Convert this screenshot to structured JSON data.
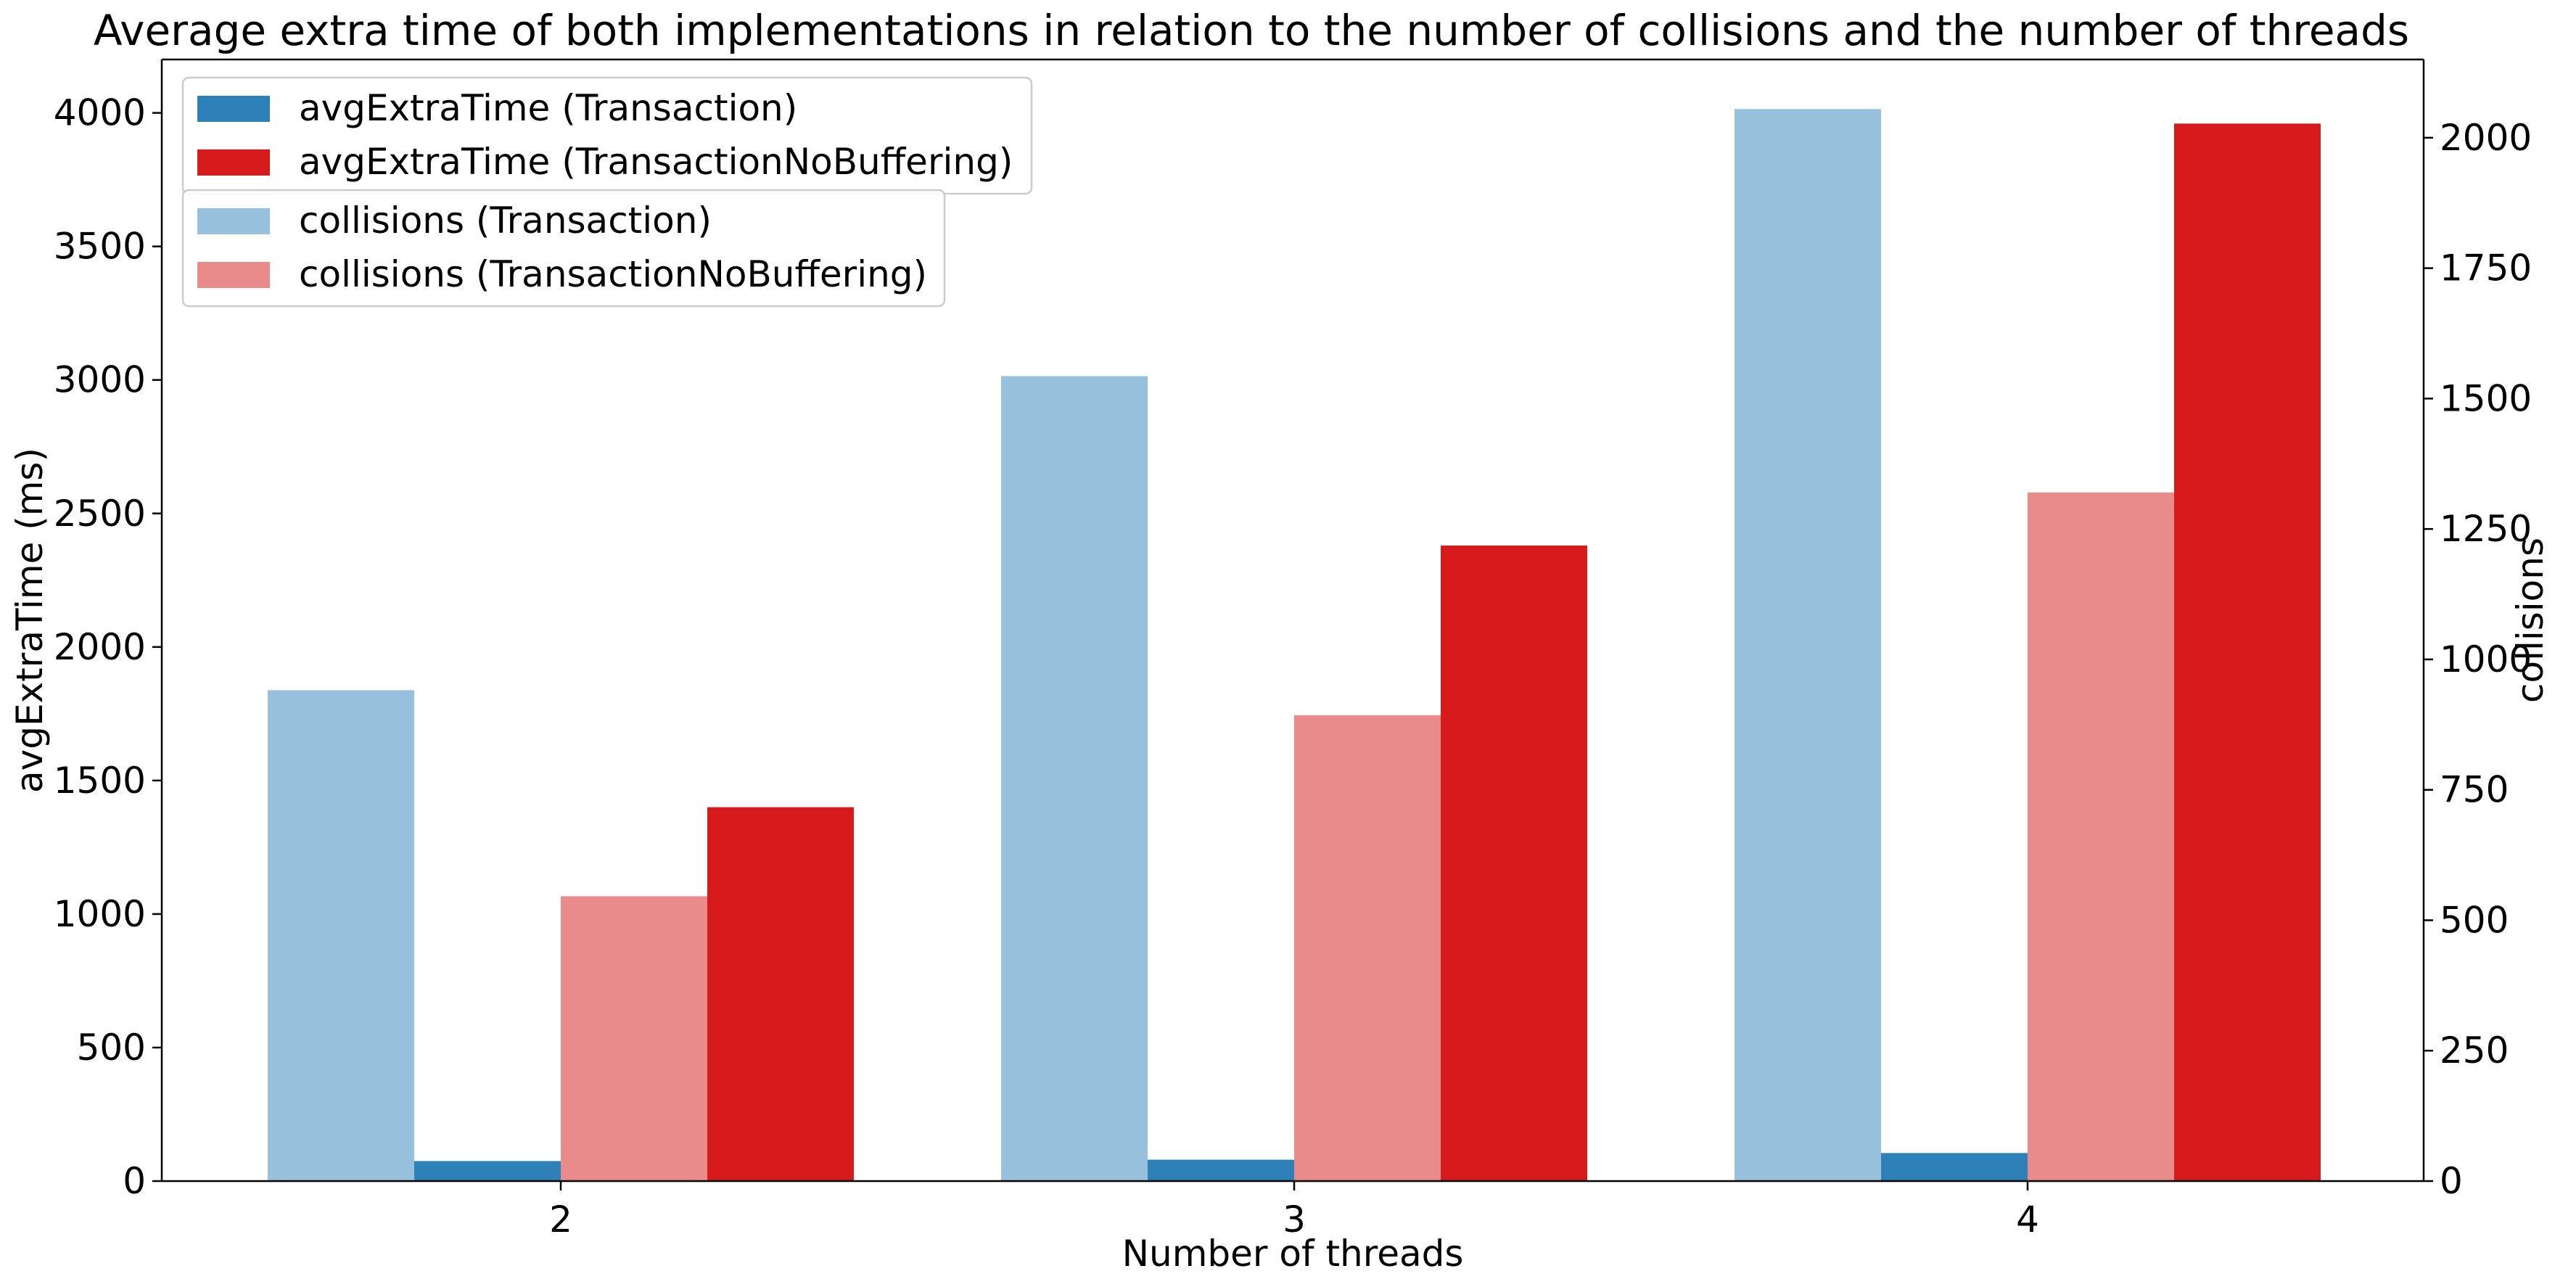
{
  "chart_data": {
    "type": "bar",
    "title": "Average extra time of both implementations in relation to the number of collisions and the number of threads",
    "xlabel": "Number of threads",
    "ylabel_left": "avgExtraTime (ms)",
    "ylabel_right": "collisions",
    "categories": [
      "2",
      "3",
      "4"
    ],
    "ylim_left": [
      0,
      4200
    ],
    "ylim_right": [
      0,
      2150
    ],
    "yticks_left": [
      "0",
      "500",
      "1000",
      "1500",
      "2000",
      "2500",
      "3000",
      "3500",
      "4000"
    ],
    "yticks_right": [
      "0",
      "250",
      "500",
      "750",
      "1000",
      "1250",
      "1500",
      "1750",
      "2000"
    ],
    "series": [
      {
        "name": "collisions (Transaction)",
        "axis": "right",
        "color": "#96c0db",
        "values": [
          941,
          1543,
          2055
        ]
      },
      {
        "name": "avgExtraTime (Transaction)",
        "axis": "left",
        "color": "#2e81b8",
        "values": [
          75,
          80,
          105
        ]
      },
      {
        "name": "collisions (TransactionNoBuffering)",
        "axis": "right",
        "color": "#ea8b8b",
        "values": [
          546,
          893,
          1320
        ]
      },
      {
        "name": "avgExtraTime (TransactionNoBuffering)",
        "axis": "left",
        "color": "#d71a1c",
        "values": [
          1400,
          2380,
          3960
        ]
      }
    ],
    "legend_primary": [
      {
        "name": "avgExtraTime (Transaction)",
        "color": "#2e81b8"
      },
      {
        "name": "avgExtraTime (TransactionNoBuffering)",
        "color": "#d71a1c"
      }
    ],
    "legend_secondary": [
      {
        "name": "collisions (Transaction)",
        "color": "#96c0db"
      },
      {
        "name": "collisions (TransactionNoBuffering)",
        "color": "#ea8b8b"
      }
    ],
    "legend_position": "top-left",
    "grid": false
  }
}
